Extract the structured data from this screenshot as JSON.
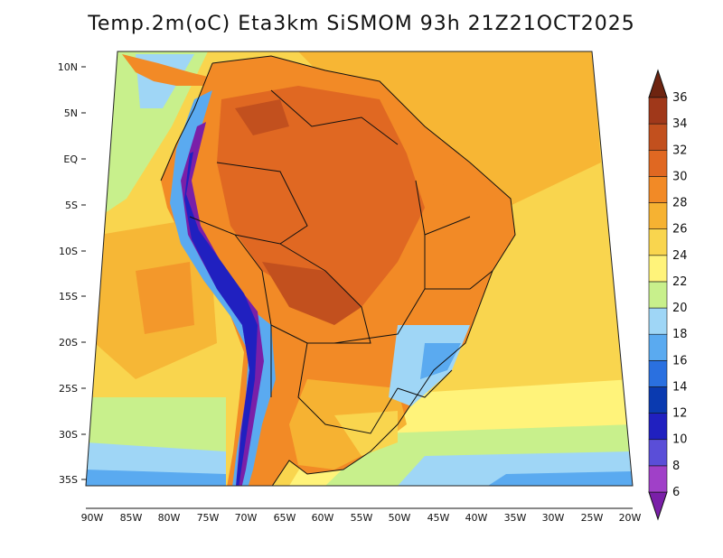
{
  "title": "Temp.2m(oC) Eta3km SiSMOM 93h 21Z21OCT2025",
  "lat_labels": [
    "10N",
    "5N",
    "EQ",
    "5S",
    "10S",
    "15S",
    "20S",
    "25S",
    "30S",
    "35S"
  ],
  "lon_labels": [
    "90W",
    "85W",
    "80W",
    "75W",
    "70W",
    "65W",
    "60W",
    "55W",
    "50W",
    "45W",
    "40W",
    "35W",
    "30W",
    "25W",
    "20W"
  ],
  "colorbar": {
    "labels": [
      "6",
      "8",
      "10",
      "12",
      "14",
      "16",
      "18",
      "20",
      "22",
      "24",
      "26",
      "28",
      "30",
      "32",
      "34",
      "36"
    ],
    "colors": [
      "#7a1fa8",
      "#a040c8",
      "#5a4ed8",
      "#2020c0",
      "#0a3ab0",
      "#2a70e0",
      "#5aaaf0",
      "#9fd6f6",
      "#c8f08c",
      "#fff37a",
      "#f9d54e",
      "#f6b232",
      "#f28a26",
      "#e06822",
      "#c2501e",
      "#a0381a",
      "#6e2410"
    ]
  },
  "colors": {
    "ocean_warm": "#f9d54e",
    "ocean_mid": "#f6b232",
    "land_hot": "#e06822",
    "land_warm": "#f28a26",
    "cool": "#9fd6f6",
    "cold": "#2a70e0",
    "andes": "#7a1fa8",
    "border": "#111111"
  }
}
